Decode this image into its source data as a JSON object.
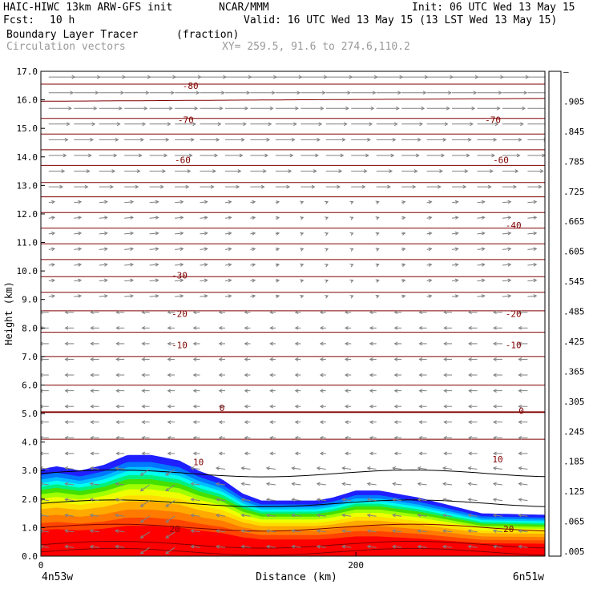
{
  "header": {
    "model": "HAIC-HIWC 13km ARW-GFS init",
    "org": "NCAR/MMM",
    "init": "Init: 06 UTC Wed 13 May 15",
    "fcst_label": "Fcst:",
    "fcst_value": "10 h",
    "valid": "Valid: 16 UTC Wed 13 May 15 (13 LST Wed 13 May 15)",
    "field": "Boundary Layer Tracer",
    "field_units": "(fraction)",
    "overlay": "Circulation vectors",
    "xy": "XY= 259.5, 91.6 to 274.6,110.2"
  },
  "colors": {
    "contour": "#800000",
    "vector": "#808080",
    "colorbar": [
      "#ffffff",
      "#1f1fff",
      "#0077ff",
      "#00bfff",
      "#00ffee",
      "#00ffaa",
      "#00f060",
      "#44e000",
      "#a0ff00",
      "#eeff00",
      "#ffdd00",
      "#ffaa00",
      "#ff7a00",
      "#ff4400",
      "#ff0000"
    ]
  },
  "chart_data": {
    "type": "contour-cross-section",
    "xlabel": "Distance (km)",
    "ylabel": "Height (km)",
    "xlim": [
      0,
      320
    ],
    "ylim": [
      0,
      17
    ],
    "x_ticks": [
      0,
      200
    ],
    "x_tick_labels": [
      "0",
      "200"
    ],
    "y_ticks": [
      0.0,
      1.0,
      2.0,
      3.0,
      4.0,
      5.0,
      6.0,
      7.0,
      8.0,
      9.0,
      10.0,
      11.0,
      12.0,
      13.0,
      14.0,
      15.0,
      16.0,
      17.0
    ],
    "y_tick_labels": [
      "0.0",
      "1.0",
      "2.0",
      "3.0",
      "4.0",
      "5.0",
      "6.0",
      "7.0",
      "8.0",
      "9.0",
      "10.0",
      "11.0",
      "12.0",
      "13.0",
      "14.0",
      "15.0",
      "16.0",
      "17.0"
    ],
    "endpoint_left": "4n53w",
    "endpoint_right": "6n51w",
    "colorbar_labels": [
      "–",
      ".905",
      ".845",
      ".785",
      ".725",
      ".665",
      ".605",
      ".545",
      ".485",
      ".425",
      ".365",
      ".305",
      ".245",
      ".185",
      ".125",
      ".065",
      ".005"
    ],
    "tracer_top_km": [
      [
        0,
        3.05
      ],
      [
        10,
        3.15
      ],
      [
        25,
        3.0
      ],
      [
        40,
        3.2
      ],
      [
        55,
        3.55
      ],
      [
        70,
        3.55
      ],
      [
        88,
        3.35
      ],
      [
        100,
        3.0
      ],
      [
        115,
        2.7
      ],
      [
        128,
        2.2
      ],
      [
        140,
        1.95
      ],
      [
        175,
        1.95
      ],
      [
        185,
        2.05
      ],
      [
        200,
        2.3
      ],
      [
        215,
        2.3
      ],
      [
        240,
        2.05
      ],
      [
        262,
        1.75
      ],
      [
        280,
        1.5
      ],
      [
        320,
        1.45
      ]
    ],
    "contour_labels": [
      {
        "value": "-80",
        "x": 95,
        "y": 16.5
      },
      {
        "value": "-70",
        "x": 92,
        "y": 15.3
      },
      {
        "value": "-70",
        "x": 287,
        "y": 15.3
      },
      {
        "value": "-60",
        "x": 90,
        "y": 13.9
      },
      {
        "value": "-60",
        "x": 292,
        "y": 13.9
      },
      {
        "value": "-40",
        "x": 300,
        "y": 11.6
      },
      {
        "value": "-30",
        "x": 88,
        "y": 9.85
      },
      {
        "value": "-20",
        "x": 88,
        "y": 8.5
      },
      {
        "value": "-20",
        "x": 300,
        "y": 8.5
      },
      {
        "value": "-10",
        "x": 88,
        "y": 7.4
      },
      {
        "value": "-10",
        "x": 300,
        "y": 7.4
      },
      {
        "value": "0",
        "x": 115,
        "y": 5.2
      },
      {
        "value": "0",
        "x": 305,
        "y": 5.1
      },
      {
        "value": "10",
        "x": 100,
        "y": 3.3
      },
      {
        "value": "10",
        "x": 290,
        "y": 3.4
      },
      {
        "value": "20",
        "x": 85,
        "y": 0.95
      },
      {
        "value": "20",
        "x": 297,
        "y": 0.95
      }
    ]
  }
}
